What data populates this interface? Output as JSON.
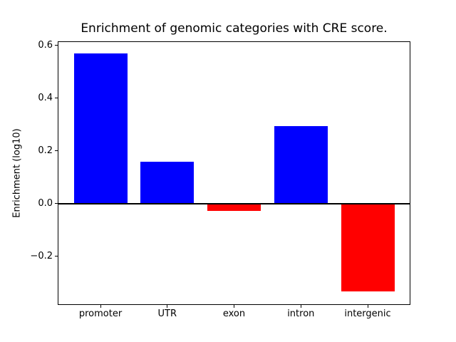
{
  "figure": {
    "background_color": "#ffffff",
    "text_color": "#000000"
  },
  "chart_data": {
    "type": "bar",
    "title": "Enrichment of genomic categories with CRE score.",
    "xlabel": "",
    "ylabel": "Enrichment (log10)",
    "categories": [
      "promoter",
      "UTR",
      "exon",
      "intron",
      "intergenic"
    ],
    "values": [
      0.57,
      0.16,
      -0.028,
      0.295,
      -0.333
    ],
    "bar_colors": [
      "#0000ff",
      "#0000ff",
      "#ff0000",
      "#0000ff",
      "#ff0000"
    ],
    "positive_color": "#0000ff",
    "negative_color": "#ff0000",
    "bar_width": 0.8,
    "xlim": [
      -0.64,
      4.64
    ],
    "ylim": [
      -0.384,
      0.615
    ],
    "yticks": [
      {
        "value": 0.6,
        "label": "0.6"
      },
      {
        "value": 0.4,
        "label": "0.4"
      },
      {
        "value": 0.2,
        "label": "0.2"
      },
      {
        "value": 0.0,
        "label": "0.0"
      },
      {
        "value": -0.2,
        "label": "−0.2"
      }
    ],
    "grid": false,
    "legend": false,
    "zero_line": {
      "show": true,
      "color": "#000000"
    }
  }
}
